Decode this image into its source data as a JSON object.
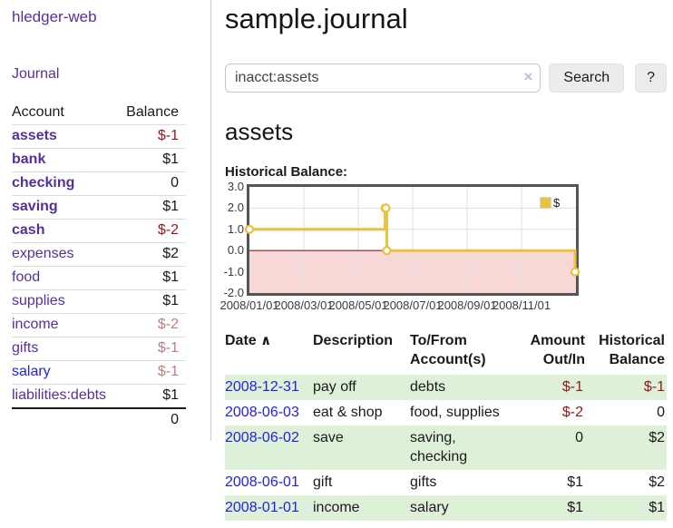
{
  "app": {
    "brand": "hledger-web"
  },
  "sidebar": {
    "journal_label": "Journal",
    "accounts_table": {
      "headers": {
        "account": "Account",
        "balance": "Balance"
      },
      "rows": [
        {
          "account": "assets",
          "depth": 1,
          "balance": "$-1",
          "bold": true
        },
        {
          "account": "bank",
          "depth": 2,
          "balance": "$1",
          "bold": true
        },
        {
          "account": "checking",
          "depth": 3,
          "balance": "0",
          "bold": true
        },
        {
          "account": "saving",
          "depth": 3,
          "balance": "$1",
          "bold": true
        },
        {
          "account": "cash",
          "depth": 2,
          "balance": "$-2",
          "bold": true
        },
        {
          "account": "expenses",
          "depth": 1,
          "balance": "$2",
          "bold": false
        },
        {
          "account": "food",
          "depth": 2,
          "balance": "$1",
          "bold": false
        },
        {
          "account": "supplies",
          "depth": 2,
          "balance": "$1",
          "bold": false
        },
        {
          "account": "income",
          "depth": 1,
          "balance": "$-2",
          "bold": false
        },
        {
          "account": "gifts",
          "depth": 2,
          "balance": "$-1",
          "bold": false
        },
        {
          "account": "salary",
          "depth": 2,
          "balance": "$-1",
          "bold": false,
          "unvisited": true
        },
        {
          "account": "liabilities:debts",
          "depth": 1,
          "balance": "$1",
          "bold": false
        }
      ],
      "total": "0"
    }
  },
  "main": {
    "title": "sample.journal",
    "search": {
      "value": "inacct:assets",
      "clear_icon": "×",
      "button": "Search",
      "help_button": "?"
    },
    "account_heading": "assets",
    "register": {
      "headers": [
        "Date",
        "Description",
        "To/From Account(s)",
        "Amount Out/In",
        "Historical Balance"
      ],
      "sort_icon": "∧",
      "rows": [
        {
          "date": "2008-12-31",
          "description": "pay off",
          "accounts": "debts",
          "amount": "$-1",
          "balance": "$-1"
        },
        {
          "date": "2008-06-03",
          "description": "eat & shop",
          "accounts": "food, supplies",
          "amount": "$-2",
          "balance": "0"
        },
        {
          "date": "2008-06-02",
          "description": "save",
          "accounts": "saving, checking",
          "amount": "0",
          "balance": "$2"
        },
        {
          "date": "2008-06-01",
          "description": "gift",
          "accounts": "gifts",
          "amount": "$1",
          "balance": "$2"
        },
        {
          "date": "2008-01-01",
          "description": "income",
          "accounts": "salary",
          "amount": "$1",
          "balance": "$1"
        }
      ]
    }
  },
  "chart_data": {
    "type": "line",
    "subtype": "step-after",
    "title": "Historical Balance:",
    "x_range": [
      "2008-01-01",
      "2009-01-01"
    ],
    "ylim": [
      -2,
      3
    ],
    "y_ticks": [
      {
        "value": 3,
        "label": "3.0"
      },
      {
        "value": 2,
        "label": "2.0"
      },
      {
        "value": 1,
        "label": "1.0"
      },
      {
        "value": 0,
        "label": "0.0"
      },
      {
        "value": -1,
        "label": "-1.0"
      },
      {
        "value": -2,
        "label": "-2.0"
      }
    ],
    "x_ticks": [
      {
        "months": 0,
        "label": "2008/01/01"
      },
      {
        "months": 2,
        "label": "2008/03/01"
      },
      {
        "months": 4,
        "label": "2008/05/01"
      },
      {
        "months": 6,
        "label": "2008/07/01"
      },
      {
        "months": 8,
        "label": "2008/09/01"
      },
      {
        "months": 10,
        "label": "2008/11/01"
      }
    ],
    "legend": {
      "label": "$",
      "position": "top-right"
    },
    "series": [
      {
        "name": "$",
        "color": "#e9c33f",
        "points": [
          [
            "2008-01-01",
            1
          ],
          [
            "2008-06-01",
            2
          ],
          [
            "2008-06-02",
            2
          ],
          [
            "2008-06-03",
            0
          ],
          [
            "2008-12-31",
            -1
          ]
        ]
      }
    ],
    "grid": true,
    "negative_region_fill": "#f8d7d7",
    "zero_line_color": "#8b1a1a"
  },
  "colors": {
    "link_purple": "#55309b",
    "link_blue": "#2222dd",
    "negative_strong": "#8e1a1a",
    "negative_soft": "#bd8080",
    "row_highlight_green": "#dff0d8",
    "chart_line_yellow": "#e9c33f",
    "chart_negative_pink": "#f8d7d7",
    "chart_zero_line": "#8b1a1a",
    "chart_border": "#545454"
  }
}
